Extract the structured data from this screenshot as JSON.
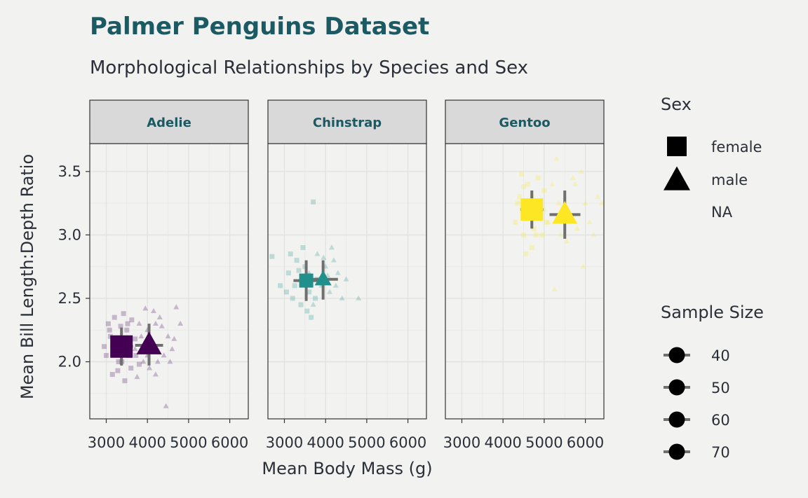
{
  "chart_data": {
    "type": "scatter",
    "title": "Palmer Penguins Dataset",
    "subtitle": "Morphological Relationships by Species and Sex",
    "xlabel": "Mean Body Mass (g)",
    "ylabel": "Mean Bill Length:Depth Ratio",
    "xlim": [
      2600,
      6450
    ],
    "ylim": [
      1.55,
      3.72
    ],
    "x_ticks": [
      3000,
      4000,
      5000,
      6000
    ],
    "x_tick_labels": [
      "3000",
      "4000",
      "5000",
      "6000"
    ],
    "y_ticks": [
      2.0,
      2.5,
      3.0,
      3.5
    ],
    "y_tick_labels": [
      "2.0",
      "2.5",
      "3.0",
      "3.5"
    ],
    "grid": true,
    "facets": [
      {
        "name": "Adelie",
        "color": "#440154",
        "summary": [
          {
            "sex": "female",
            "x": 3370,
            "y": 2.12,
            "x_err": [
              3100,
              3650
            ],
            "y_err": [
              1.97,
              2.27
            ]
          },
          {
            "sex": "male",
            "x": 4040,
            "y": 2.13,
            "x_err": [
              3700,
              4380
            ],
            "y_err": [
              1.97,
              2.3
            ]
          }
        ],
        "female_points": [
          [
            3000,
            2.05
          ],
          [
            3100,
            2.2
          ],
          [
            3200,
            2.35
          ],
          [
            3300,
            2.0
          ],
          [
            3400,
            2.1
          ],
          [
            3450,
            1.85
          ],
          [
            3500,
            2.25
          ],
          [
            3600,
            1.95
          ],
          [
            3250,
            2.15
          ],
          [
            3150,
            1.9
          ],
          [
            3050,
            2.3
          ],
          [
            3350,
            2.28
          ],
          [
            3550,
            2.05
          ],
          [
            3700,
            2.18
          ],
          [
            3800,
            1.98
          ],
          [
            2950,
            2.12
          ],
          [
            3420,
            2.38
          ],
          [
            3180,
            2.08
          ],
          [
            3620,
            2.33
          ],
          [
            3280,
            1.93
          ],
          [
            3480,
            2.17
          ],
          [
            3080,
            2.25
          ],
          [
            3720,
            2.05
          ],
          [
            3380,
            2.0
          ],
          [
            3520,
            2.3
          ]
        ],
        "male_points": [
          [
            3700,
            2.1
          ],
          [
            3800,
            2.3
          ],
          [
            3900,
            2.0
          ],
          [
            4000,
            2.25
          ],
          [
            4100,
            2.15
          ],
          [
            4200,
            1.9
          ],
          [
            4300,
            2.35
          ],
          [
            4400,
            2.05
          ],
          [
            4500,
            2.2
          ],
          [
            3950,
            2.42
          ],
          [
            4150,
            2.4
          ],
          [
            4600,
            2.1
          ],
          [
            4700,
            2.43
          ],
          [
            4800,
            2.3
          ],
          [
            4050,
            1.95
          ],
          [
            4250,
            2.0
          ],
          [
            3850,
            2.2
          ],
          [
            4350,
            2.28
          ],
          [
            4450,
            1.65
          ],
          [
            4550,
            2.0
          ],
          [
            3750,
            1.88
          ],
          [
            4650,
            2.18
          ],
          [
            4000,
            2.05
          ],
          [
            4200,
            2.3
          ]
        ]
      },
      {
        "name": "Chinstrap",
        "color": "#21908d",
        "summary": [
          {
            "sex": "female",
            "x": 3530,
            "y": 2.64,
            "x_err": [
              3220,
              3850
            ],
            "y_err": [
              2.48,
              2.8
            ]
          },
          {
            "sex": "male",
            "x": 3940,
            "y": 2.65,
            "x_err": [
              3580,
              4300
            ],
            "y_err": [
              2.49,
              2.8
            ]
          }
        ],
        "female_points": [
          [
            2700,
            2.83
          ],
          [
            2900,
            2.6
          ],
          [
            3100,
            2.7
          ],
          [
            3200,
            2.5
          ],
          [
            3300,
            2.8
          ],
          [
            3400,
            2.45
          ],
          [
            3500,
            2.75
          ],
          [
            3600,
            2.55
          ],
          [
            3700,
            3.26
          ],
          [
            3800,
            2.65
          ],
          [
            3250,
            2.6
          ],
          [
            3450,
            2.9
          ],
          [
            3550,
            2.4
          ],
          [
            3650,
            2.35
          ],
          [
            3350,
            2.72
          ],
          [
            3150,
            2.85
          ],
          [
            3750,
            2.5
          ],
          [
            3050,
            2.55
          ],
          [
            3580,
            2.68
          ],
          [
            3420,
            2.62
          ]
        ],
        "male_points": [
          [
            3600,
            2.7
          ],
          [
            3800,
            2.85
          ],
          [
            3900,
            2.6
          ],
          [
            4000,
            2.75
          ],
          [
            4100,
            2.55
          ],
          [
            4200,
            2.8
          ],
          [
            4300,
            2.7
          ],
          [
            4400,
            2.5
          ],
          [
            4500,
            2.65
          ],
          [
            4800,
            2.5
          ],
          [
            3700,
            2.45
          ],
          [
            4150,
            2.9
          ],
          [
            3950,
            2.82
          ],
          [
            4250,
            2.6
          ],
          [
            4050,
            2.68
          ]
        ]
      },
      {
        "name": "Gentoo",
        "color": "#fde725",
        "summary": [
          {
            "sex": "female",
            "x": 4700,
            "y": 3.2,
            "x_err": [
              4420,
              4980
            ],
            "y_err": [
              3.05,
              3.35
            ]
          },
          {
            "sex": "male",
            "x": 5500,
            "y": 3.16,
            "x_err": [
              5130,
              5880
            ],
            "y_err": [
              2.97,
              3.35
            ]
          }
        ],
        "female_points": [
          [
            4300,
            3.1
          ],
          [
            4400,
            3.3
          ],
          [
            4500,
            3.0
          ],
          [
            4600,
            3.4
          ],
          [
            4700,
            2.9
          ],
          [
            4800,
            3.25
          ],
          [
            4900,
            3.15
          ],
          [
            5000,
            3.35
          ],
          [
            4450,
            3.48
          ],
          [
            4550,
            2.85
          ],
          [
            4650,
            3.2
          ],
          [
            4750,
            3.05
          ],
          [
            4850,
            3.45
          ],
          [
            4950,
            3.0
          ],
          [
            4350,
            3.25
          ],
          [
            5050,
            3.1
          ],
          [
            4600,
            3.15
          ],
          [
            4800,
            3.0
          ],
          [
            4500,
            3.38
          ],
          [
            4700,
            3.3
          ]
        ],
        "male_points": [
          [
            5000,
            3.2
          ],
          [
            5200,
            3.4
          ],
          [
            5300,
            3.6
          ],
          [
            5400,
            3.0
          ],
          [
            5500,
            3.3
          ],
          [
            5600,
            3.15
          ],
          [
            5700,
            3.45
          ],
          [
            5800,
            3.05
          ],
          [
            5900,
            3.5
          ],
          [
            6000,
            3.25
          ],
          [
            6100,
            3.1
          ],
          [
            6200,
            3.0
          ],
          [
            6300,
            3.3
          ],
          [
            5250,
            2.57
          ],
          [
            5950,
            2.75
          ],
          [
            5100,
            3.1
          ],
          [
            5350,
            3.25
          ],
          [
            5550,
            2.95
          ],
          [
            5750,
            3.4
          ],
          [
            6400,
            3.25
          ]
        ]
      }
    ],
    "legend": {
      "placement": "right",
      "sex_title": "Sex",
      "sex_labels": [
        "female",
        "male",
        "NA"
      ],
      "size_title": "Sample Size",
      "size_labels": [
        "40",
        "50",
        "60",
        "70"
      ]
    }
  }
}
